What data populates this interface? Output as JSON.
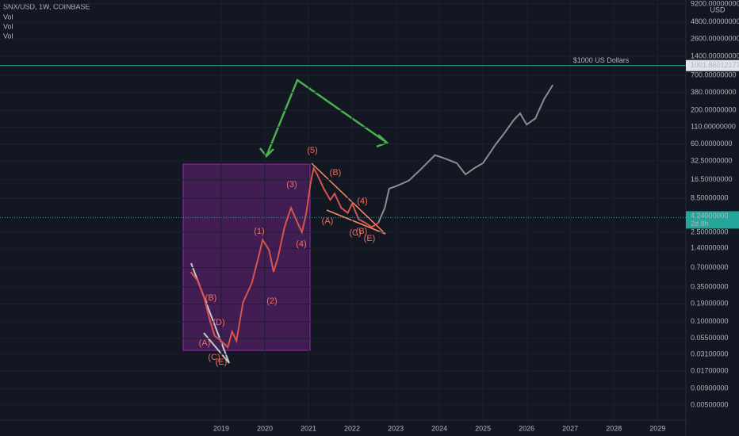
{
  "header": {
    "symbol": "SNX/USD, 1W, COINBASE",
    "indicators": [
      "Vol",
      "Vol",
      "Vol"
    ]
  },
  "chart_data": {
    "type": "line",
    "log_scale": true,
    "currency": "USD",
    "xlim": [
      2013.93,
      2029.65
    ],
    "xticks": [
      2019,
      2020,
      2021,
      2022,
      2023,
      2024,
      2025,
      2026,
      2027,
      2028,
      2029
    ],
    "ylim": [
      0.0029,
      10600
    ],
    "yticks": [
      {
        "value": 9200,
        "label": "9200.00000000"
      },
      {
        "value": 4800,
        "label": "4800.00000000"
      },
      {
        "value": 2600,
        "label": "2600.00000000"
      },
      {
        "value": 1400,
        "label": "1400.00000000"
      },
      {
        "value": 700,
        "label": "700.00000000"
      },
      {
        "value": 380,
        "label": "380.00000000"
      },
      {
        "value": 200,
        "label": "200.00000000"
      },
      {
        "value": 110,
        "label": "110.00000000"
      },
      {
        "value": 60,
        "label": "60.00000000"
      },
      {
        "value": 32.5,
        "label": "32.50000000"
      },
      {
        "value": 16.5,
        "label": "16.50000000"
      },
      {
        "value": 8.5,
        "label": "8.50000000"
      },
      {
        "value": 2.5,
        "label": "2.50000000"
      },
      {
        "value": 1.4,
        "label": "1.40000000"
      },
      {
        "value": 0.7,
        "label": "0.70000000"
      },
      {
        "value": 0.35,
        "label": "0.35000000"
      },
      {
        "value": 0.19,
        "label": "0.19000000"
      },
      {
        "value": 0.1,
        "label": "0.10000000"
      },
      {
        "value": 0.055,
        "label": "0.05500000"
      },
      {
        "value": 0.031,
        "label": "0.03100000"
      },
      {
        "value": 0.017,
        "label": "0.01700000"
      },
      {
        "value": 0.009,
        "label": "0.00900000"
      },
      {
        "value": 0.005,
        "label": "0.00500000"
      }
    ],
    "series": [
      {
        "color": "#d9534f",
        "x": [
          2018.3,
          2018.45,
          2018.6,
          2018.75,
          2018.85,
          2019.0,
          2019.15,
          2019.25,
          2019.35,
          2019.5,
          2019.7,
          2019.85,
          2019.95,
          2020.1,
          2020.2,
          2020.3,
          2020.45,
          2020.6,
          2020.75,
          2020.85,
          2020.95,
          2021.05,
          2021.12,
          2021.2,
          2021.35,
          2021.5,
          2021.6,
          2021.75,
          2021.9,
          2022.0,
          2022.15,
          2022.3,
          2022.45,
          2022.6
        ],
        "values": [
          0.6,
          0.45,
          0.25,
          0.1,
          0.06,
          0.05,
          0.04,
          0.07,
          0.05,
          0.2,
          0.4,
          1.0,
          1.9,
          1.3,
          0.6,
          1.0,
          3.0,
          6.0,
          3.5,
          2.5,
          5,
          15,
          25,
          20,
          12,
          8,
          10,
          6,
          5,
          7,
          4,
          3.5,
          3,
          3.5
        ]
      },
      {
        "color": "#8a8d96",
        "x": [
          2022.6,
          2022.75,
          2022.85,
          2023.0,
          2023.3,
          2023.6,
          2023.9,
          2024.15,
          2024.4,
          2024.6,
          2024.8,
          2025.0,
          2025.3,
          2025.5,
          2025.7,
          2025.85,
          2026.0,
          2026.2,
          2026.4,
          2026.6
        ],
        "values": [
          3.5,
          6,
          12,
          13,
          16,
          25,
          40,
          35,
          30,
          20,
          25,
          30,
          60,
          90,
          140,
          180,
          120,
          150,
          300,
          500
        ]
      }
    ],
    "level_line": {
      "value": 1001.86012177,
      "label": "1001.86012177",
      "name": "$1000 US Dollars"
    },
    "current_price": {
      "value": 4.24,
      "label": "4.24000000",
      "countdown": "2d 8h"
    },
    "wave_labels": [
      "(5)",
      "(B)",
      "(3)",
      "(A)",
      "(4)",
      "(C)",
      "(B)",
      "(E)",
      "(1)",
      "(4)",
      "(2)",
      "(B)",
      "(D)",
      "(A)",
      "(C)",
      "(E)"
    ]
  }
}
